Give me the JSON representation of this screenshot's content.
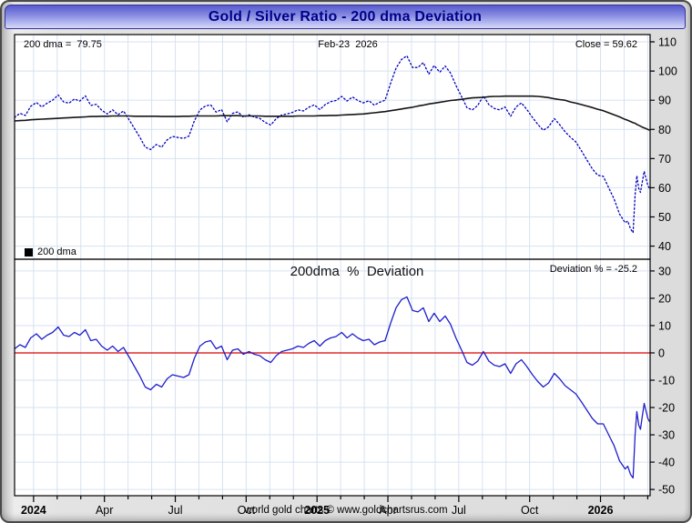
{
  "window": {
    "title": "Gold / Silver Ratio - 200 dma Deviation"
  },
  "top_panel": {
    "dma_label": "200 dma =  79.75",
    "date_label": "Feb-23  2026",
    "close_label": "Close = 59.62",
    "legend_label": "200 dma"
  },
  "bottom_panel": {
    "title": "200dma  %  Deviation",
    "deviation_label": "Deviation % = -25.2"
  },
  "footer": "world gold charts © www.goldchartsrus.com",
  "colors": {
    "ratio_dots": "#0000bb",
    "dma_line": "#141414",
    "deviation_line": "#1f1fcc",
    "zero_line": "#dd0000",
    "grid": "#d7e2f2",
    "plot_border": "#000000",
    "title_text": "#00008b"
  },
  "chart_data": {
    "type": "line",
    "x_unit": "decimal_year",
    "xlim": [
      2023.933,
      2026.175
    ],
    "x": [
      2023.933,
      2023.952,
      2023.971,
      2023.99,
      2024.01,
      2024.029,
      2024.048,
      2024.067,
      2024.087,
      2024.106,
      2024.125,
      2024.144,
      2024.163,
      2024.183,
      2024.202,
      2024.221,
      2024.24,
      2024.26,
      2024.279,
      2024.298,
      2024.317,
      2024.337,
      2024.356,
      2024.375,
      2024.394,
      2024.413,
      2024.433,
      2024.452,
      2024.471,
      2024.49,
      2024.51,
      2024.529,
      2024.548,
      2024.567,
      2024.587,
      2024.606,
      2024.625,
      2024.644,
      2024.663,
      2024.683,
      2024.702,
      2024.721,
      2024.74,
      2024.76,
      2024.779,
      2024.798,
      2024.817,
      2024.837,
      2024.856,
      2024.875,
      2024.894,
      2024.913,
      2024.933,
      2024.952,
      2024.971,
      2024.99,
      2025.01,
      2025.029,
      2025.048,
      2025.067,
      2025.087,
      2025.106,
      2025.125,
      2025.144,
      2025.163,
      2025.183,
      2025.202,
      2025.221,
      2025.24,
      2025.26,
      2025.279,
      2025.298,
      2025.317,
      2025.337,
      2025.356,
      2025.375,
      2025.394,
      2025.413,
      2025.433,
      2025.452,
      2025.471,
      2025.49,
      2025.51,
      2025.529,
      2025.548,
      2025.567,
      2025.587,
      2025.606,
      2025.625,
      2025.644,
      2025.663,
      2025.683,
      2025.702,
      2025.721,
      2025.74,
      2025.76,
      2025.779,
      2025.798,
      2025.817,
      2025.837,
      2025.856,
      2025.875,
      2025.894,
      2025.913,
      2025.933,
      2025.952,
      2025.971,
      2025.99,
      2026.01,
      2026.029,
      2026.048,
      2026.067,
      2026.087,
      2026.096,
      2026.106,
      2026.115,
      2026.122,
      2026.128,
      2026.135,
      2026.141,
      2026.147,
      2026.154,
      2026.16,
      2026.167,
      2026.173
    ],
    "xticks": [
      {
        "t": 2024.0,
        "label": "2024",
        "bold": true
      },
      {
        "t": 2024.25,
        "label": "Apr",
        "bold": false
      },
      {
        "t": 2024.5,
        "label": "Jul",
        "bold": false
      },
      {
        "t": 2024.75,
        "label": "Oct",
        "bold": false
      },
      {
        "t": 2025.0,
        "label": "2025",
        "bold": true
      },
      {
        "t": 2025.25,
        "label": "Apr",
        "bold": false
      },
      {
        "t": 2025.5,
        "label": "Jul",
        "bold": false
      },
      {
        "t": 2025.75,
        "label": "Oct",
        "bold": false
      },
      {
        "t": 2026.0,
        "label": "2026",
        "bold": true
      }
    ],
    "panels": [
      {
        "name": "gold-silver-ratio",
        "ylim": [
          35.5,
          112.5
        ],
        "yticks": [
          110,
          100,
          90,
          80,
          70,
          60,
          50,
          40
        ],
        "series": [
          {
            "name": "Gold/Silver Ratio",
            "style": "dots",
            "color": "#0000bb",
            "values": [
              84.1,
              85.5,
              84.8,
              87.9,
              89.2,
              87.7,
              89,
              90,
              91.8,
              89.4,
              89,
              90.4,
              89.7,
              91.5,
              88.2,
              88.6,
              86.6,
              85.3,
              86.7,
              85,
              86.3,
              83.3,
              80.3,
              77.3,
              73.9,
              73.1,
              74.8,
              73.9,
              76.4,
              77.6,
              77.2,
              76.9,
              77.7,
              82.9,
              86.7,
              88,
              88.4,
              85.9,
              86.8,
              82.6,
              85.5,
              86,
              84.2,
              85,
              84.2,
              83.8,
              82.4,
              81.5,
              83.7,
              84.9,
              85.3,
              85.8,
              86.7,
              86.3,
              87.6,
              88.4,
              86.8,
              88.5,
              89.5,
              89.9,
              91.3,
              89.7,
              91.1,
              89.9,
              89.1,
              89.8,
              88.3,
              89.3,
              90,
              95.9,
              101,
              104,
              105.2,
              101.2,
              101.2,
              102.9,
              98.9,
              101.9,
              99.6,
              101.7,
              99.3,
              95.1,
              91.2,
              87.4,
              86.7,
              88.2,
              91.5,
              88.5,
              87.2,
              86.7,
              87.7,
              84.5,
              87.7,
              89.1,
              86.8,
              84.1,
              81.7,
              79.7,
              80.9,
              83.7,
              81.6,
              79.2,
              77.3,
              75.7,
              72.6,
              69.5,
              66.5,
              64.3,
              63.9,
              60,
              56.1,
              51,
              48,
              48.6,
              45.9,
              44.6,
              57.5,
              64.1,
              59.8,
              58.4,
              61.8,
              65.6,
              63.4,
              60.8,
              59.6
            ]
          },
          {
            "name": "200 dma",
            "style": "line",
            "color": "#141414",
            "values": [
              82.9,
              83,
              83.1,
              83.3,
              83.4,
              83.5,
              83.6,
              83.7,
              83.8,
              83.9,
              84,
              84.1,
              84.2,
              84.3,
              84.4,
              84.4,
              84.5,
              84.5,
              84.6,
              84.6,
              84.6,
              84.6,
              84.5,
              84.5,
              84.5,
              84.5,
              84.5,
              84.4,
              84.4,
              84.4,
              84.4,
              84.5,
              84.5,
              84.6,
              84.6,
              84.6,
              84.6,
              84.6,
              84.7,
              84.7,
              84.7,
              84.7,
              84.6,
              84.6,
              84.6,
              84.6,
              84.5,
              84.5,
              84.5,
              84.5,
              84.5,
              84.5,
              84.6,
              84.6,
              84.6,
              84.6,
              84.7,
              84.7,
              84.8,
              84.8,
              84.9,
              85,
              85.1,
              85.2,
              85.3,
              85.5,
              85.7,
              85.9,
              86.1,
              86.4,
              86.7,
              87,
              87.3,
              87.6,
              88,
              88.3,
              88.7,
              89,
              89.3,
              89.6,
              89.9,
              90.1,
              90.3,
              90.6,
              90.8,
              90.9,
              91,
              91.2,
              91.3,
              91.3,
              91.4,
              91.4,
              91.4,
              91.4,
              91.4,
              91.4,
              91.3,
              91.1,
              90.9,
              90.5,
              90.2,
              90,
              89.4,
              89,
              88.5,
              88,
              87.5,
              86.9,
              86.4,
              85.7,
              85,
              84.3,
              83.4,
              83.1,
              82.7,
              82.3,
              82.1,
              81.7,
              81.4,
              81.1,
              80.8,
              80.5,
              80.3,
              80,
              79.75
            ]
          }
        ],
        "annotations": {
          "dma_value": 79.75,
          "close": 59.62,
          "date": "Feb-23 2026"
        }
      },
      {
        "name": "deviation-percent",
        "ylim": [
          -52.3,
          34.3
        ],
        "yticks": [
          30,
          20,
          10,
          0,
          -10,
          -20,
          -30,
          -40,
          -50
        ],
        "zero_line": 0,
        "series": [
          {
            "name": "200dma % Deviation",
            "style": "line",
            "color": "#1f1fcc",
            "values": [
              1.5,
              3,
              2,
              5.5,
              7,
              5,
              6.5,
              7.5,
              9.5,
              6.5,
              6,
              7.5,
              6.5,
              8.5,
              4.5,
              5,
              2.5,
              1,
              2.5,
              0.5,
              2,
              -1.5,
              -5,
              -8.5,
              -12.5,
              -13.5,
              -11.5,
              -12.5,
              -9.5,
              -8,
              -8.5,
              -9,
              -8,
              -2,
              2.5,
              4,
              4.5,
              1.5,
              2.5,
              -2.5,
              1,
              1.5,
              -0.5,
              0.5,
              -0.5,
              -1,
              -2.5,
              -3.5,
              -1,
              0.5,
              1,
              1.5,
              2.5,
              2,
              3.5,
              4.5,
              2.5,
              4.5,
              5.5,
              6,
              7.5,
              5.5,
              7,
              5.5,
              4.5,
              5,
              3,
              4,
              4.5,
              11,
              16.5,
              19.5,
              20.5,
              15.5,
              15,
              16.5,
              11.5,
              14.5,
              11.5,
              13.5,
              10.5,
              5.5,
              1,
              -3.5,
              -4.5,
              -3,
              0.5,
              -3,
              -4.5,
              -5,
              -4,
              -7.5,
              -4,
              -2.5,
              -5,
              -8,
              -10.5,
              -12.5,
              -11,
              -7.5,
              -9.5,
              -12,
              -13.5,
              -15,
              -18,
              -21,
              -24,
              -26,
              -26,
              -30,
              -34,
              -39.5,
              -42.5,
              -41.5,
              -44.5,
              -45.8,
              -30,
              -21.5,
              -26.5,
              -28,
              -23.5,
              -18.5,
              -21,
              -24,
              -25.2
            ]
          }
        ],
        "annotations": {
          "deviation_pct": -25.2
        }
      }
    ]
  }
}
